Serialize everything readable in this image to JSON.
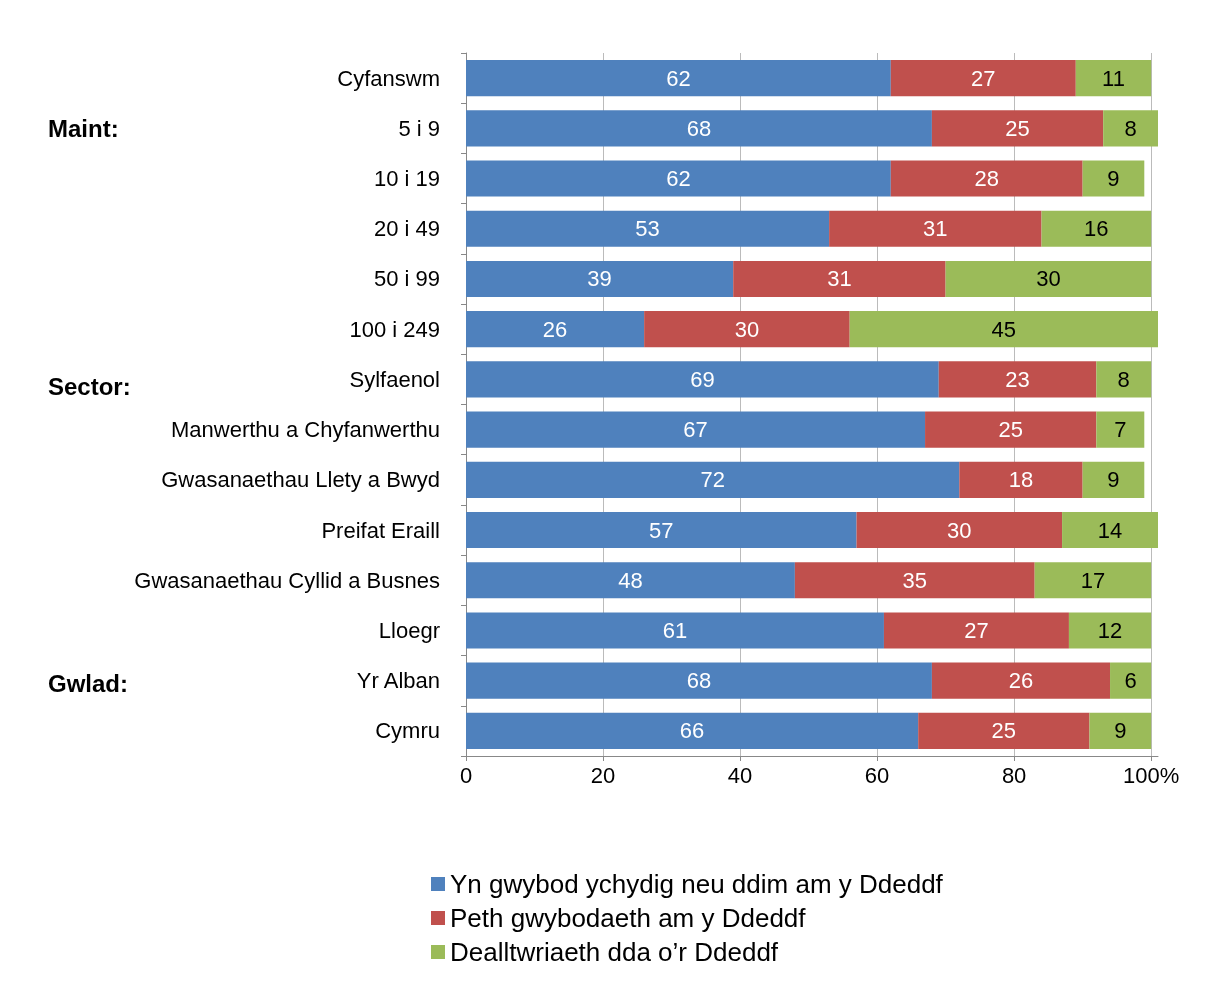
{
  "chart_data": {
    "type": "bar",
    "orientation": "horizontal",
    "stacked": true,
    "data_labels": true,
    "grid": "x",
    "legend": "bottom",
    "categories": [
      "Cyfanswm",
      "5 i 9",
      "10 i 19",
      "20 i 49",
      "50 i 99",
      "100 i 249",
      "Sylfaenol",
      "Manwerthu a Chyfanwerthu",
      "Gwasanaethau Llety a Bwyd",
      "Preifat Eraill",
      "Gwasanaethau Cyllid a Busnes",
      "Lloegr",
      "Yr Alban",
      "Cymru"
    ],
    "series": [
      {
        "name": "Yn gwybod ychydig neu ddim am y Ddeddf",
        "color": "#4f81bd",
        "values": [
          62,
          68,
          62,
          53,
          39,
          26,
          69,
          67,
          72,
          57,
          48,
          61,
          68,
          66
        ]
      },
      {
        "name": "Peth gwybodaeth am y Ddeddf",
        "color": "#c0504d",
        "values": [
          27,
          25,
          28,
          31,
          31,
          30,
          23,
          25,
          18,
          30,
          35,
          27,
          26,
          25
        ]
      },
      {
        "name": "Dealltwriaeth dda o’r Ddeddf",
        "color": "#9bbb59",
        "values": [
          11,
          8,
          9,
          16,
          30,
          45,
          8,
          7,
          9,
          14,
          17,
          12,
          6,
          9
        ]
      }
    ],
    "xlim": [
      0,
      101
    ],
    "xticks": [
      0,
      20,
      40,
      60,
      80,
      {
        "value": 100,
        "label": "100%"
      }
    ],
    "annotations": [
      "Maint:",
      "Sector:",
      "Gwlad:"
    ]
  }
}
